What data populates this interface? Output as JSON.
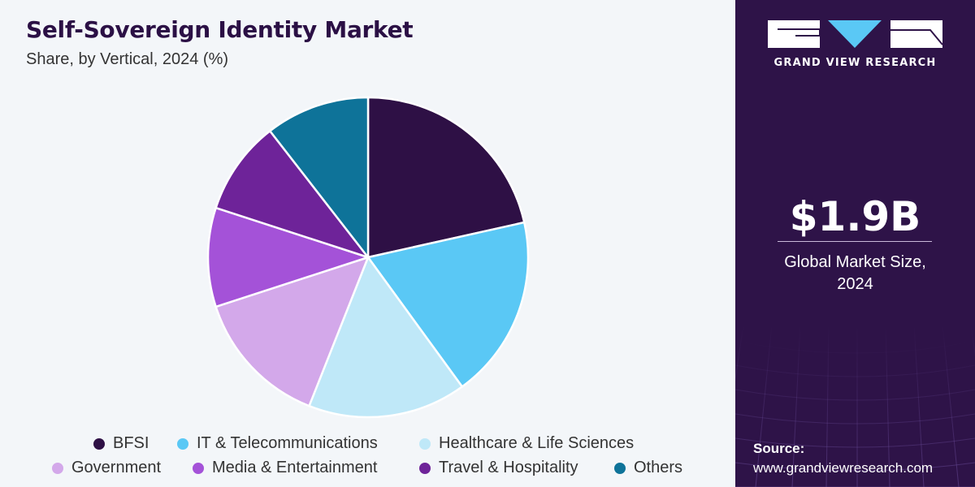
{
  "header": {
    "title": "Self-Sovereign Identity Market",
    "subtitle": "Share, by Vertical, 2024 (%)"
  },
  "chart_data": {
    "type": "pie",
    "categories": [
      "BFSI",
      "IT & Telecommunications",
      "Healthcare & Life Sciences",
      "Government",
      "Media & Entertainment",
      "Travel & Hospitality",
      "Others"
    ],
    "values": [
      21.5,
      18.5,
      16,
      14,
      10,
      9.5,
      10.5
    ],
    "colors": [
      "#2e1045",
      "#5ac8f5",
      "#bfe8f8",
      "#d3a8ea",
      "#a452d8",
      "#6e2399",
      "#0e7399"
    ],
    "legend": "bottom"
  },
  "legend": {
    "items": [
      {
        "label": "BFSI",
        "color": "#2e1045"
      },
      {
        "label": "IT & Telecommunications",
        "color": "#5ac8f5"
      },
      {
        "label": "Healthcare & Life Sciences",
        "color": "#bfe8f8"
      },
      {
        "label": "Government",
        "color": "#d3a8ea"
      },
      {
        "label": "Media & Entertainment",
        "color": "#a452d8"
      },
      {
        "label": "Travel & Hospitality",
        "color": "#6e2399"
      },
      {
        "label": "Others",
        "color": "#0e7399"
      }
    ]
  },
  "sidebar": {
    "brand_name": "GRAND VIEW RESEARCH",
    "logo_icon": "gvr-logo-icon",
    "market_value": "$1.9B",
    "market_label_line1": "Global Market Size,",
    "market_label_line2": "2024",
    "source_label": "Source:",
    "source_url": "www.grandviewresearch.com",
    "background_color": "#2e1348"
  }
}
